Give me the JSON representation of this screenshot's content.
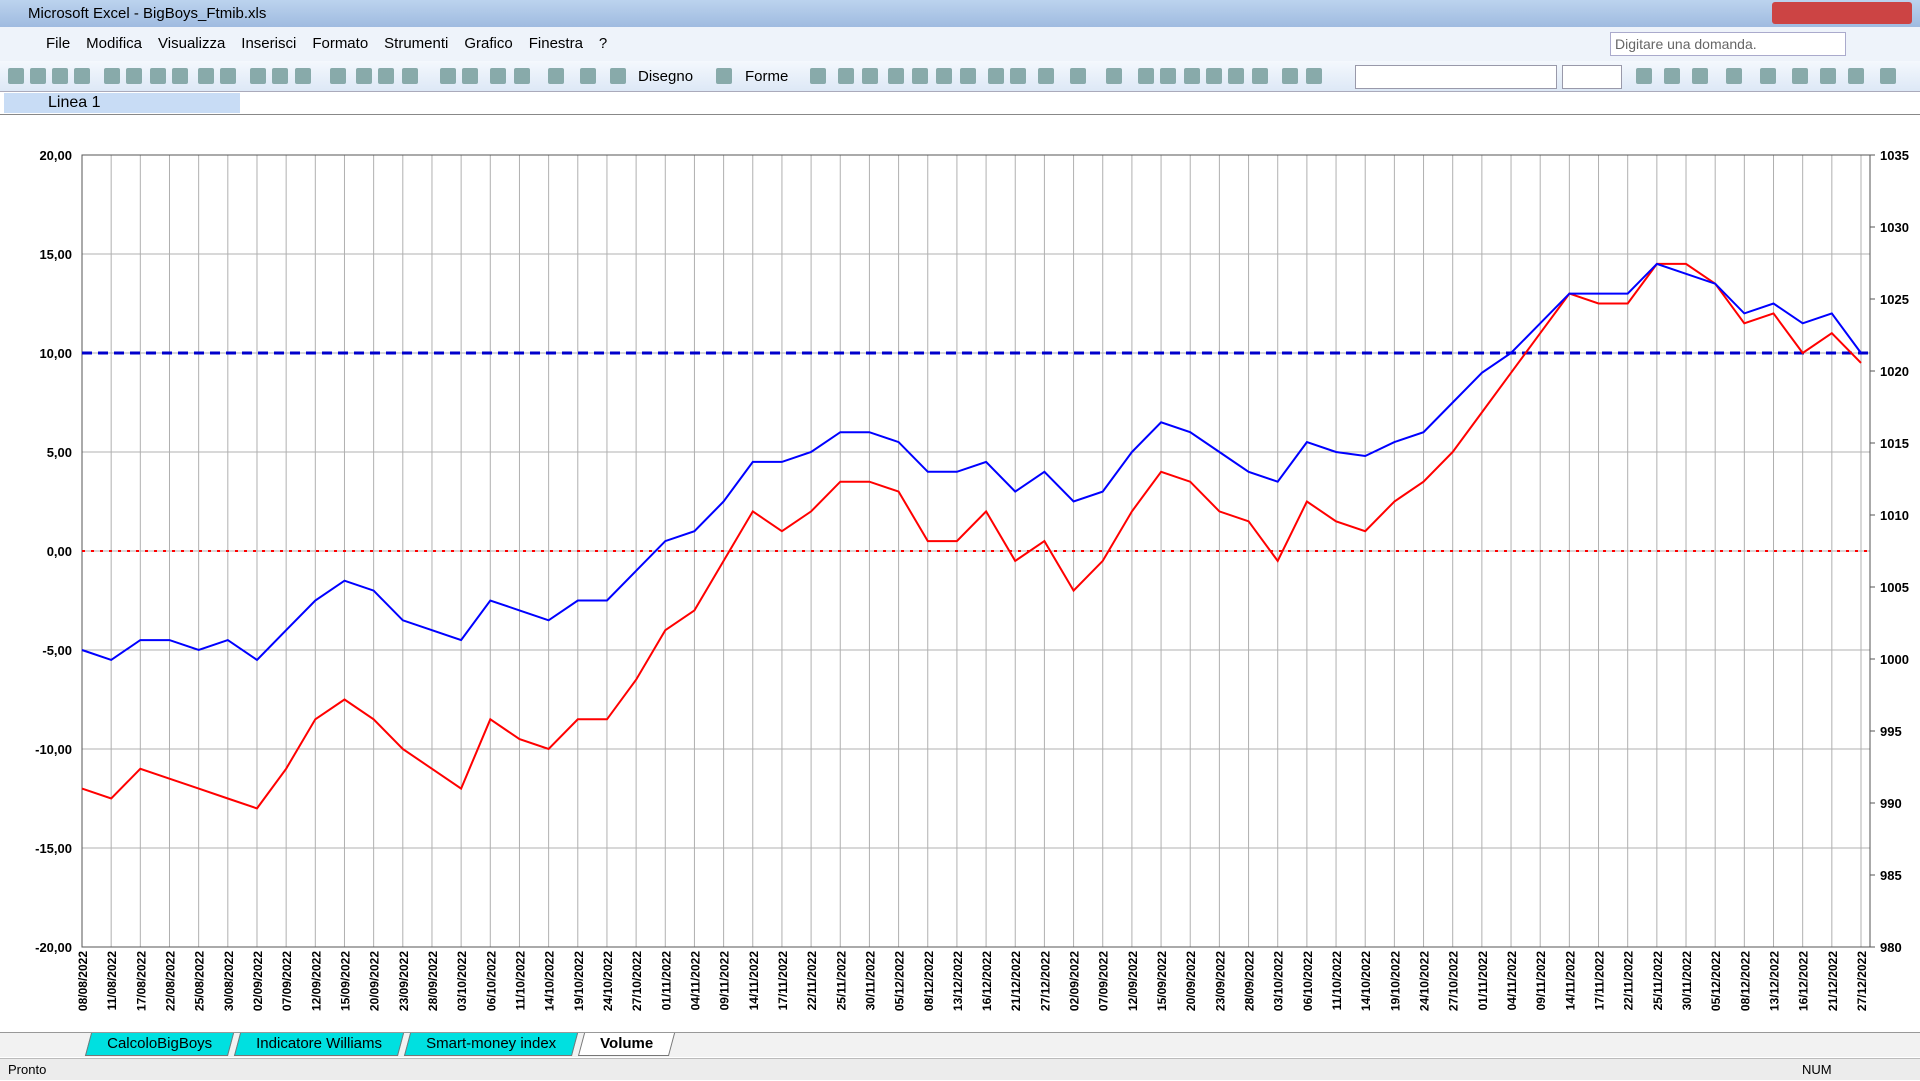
{
  "window": {
    "title": "Microsoft Excel - BigBoys_Ftmib.xls"
  },
  "menu": [
    "File",
    "Modifica",
    "Visualizza",
    "Inserisci",
    "Formato",
    "Strumenti",
    "Grafico",
    "Finestra",
    "?"
  ],
  "help_box": "Digitare una domanda.",
  "toolbar": {
    "drawing": "Disegno",
    "shapes": "Forme"
  },
  "name_box": "Linea 1",
  "sheet_tabs": [
    "CalcoloBigBoys",
    "Indicatore Williams",
    "Smart-money index",
    "Volume"
  ],
  "status": {
    "left": "Pronto",
    "num": "NUM"
  },
  "chart_data": {
    "type": "line",
    "categories": [
      "08/08/2022",
      "11/08/2022",
      "17/08/2022",
      "22/08/2022",
      "25/08/2022",
      "30/08/2022",
      "02/09/2022",
      "07/09/2022",
      "12/09/2022",
      "15/09/2022",
      "20/09/2022",
      "23/09/2022",
      "28/09/2022",
      "03/10/2022",
      "06/10/2022",
      "11/10/2022",
      "14/10/2022",
      "19/10/2022",
      "24/10/2022",
      "27/10/2022",
      "01/11/2022",
      "04/11/2022",
      "09/11/2022",
      "14/11/2022",
      "17/11/2022",
      "22/11/2022",
      "25/11/2022",
      "30/11/2022",
      "05/12/2022",
      "08/12/2022",
      "13/12/2022",
      "16/12/2022",
      "21/12/2022",
      "27/12/2022",
      "02/09/2022",
      "07/09/2022",
      "12/09/2022",
      "15/09/2022",
      "20/09/2022",
      "23/09/2022",
      "28/09/2022",
      "03/10/2022",
      "06/10/2022",
      "11/10/2022",
      "14/10/2022",
      "19/10/2022",
      "24/10/2022",
      "27/10/2022",
      "01/11/2022",
      "04/11/2022",
      "09/11/2022",
      "14/11/2022",
      "17/11/2022",
      "22/11/2022",
      "25/11/2022",
      "30/11/2022",
      "05/12/2022",
      "08/12/2022",
      "13/12/2022",
      "16/12/2022",
      "21/12/2022",
      "27/12/2022"
    ],
    "series": [
      {
        "color": "#ff0000",
        "values": [
          -12.0,
          -12.5,
          -11.0,
          -11.5,
          -12.0,
          -12.5,
          -13.0,
          -11.0,
          -8.5,
          -7.5,
          -8.5,
          -10.0,
          -11.0,
          -12.0,
          -8.5,
          -9.5,
          -10.0,
          -8.5,
          -8.5,
          -6.5,
          -4.0,
          -3.0,
          -0.5,
          2.0,
          1.0,
          2.0,
          3.5,
          3.5,
          3.0,
          0.5,
          0.5,
          2.0,
          -0.5,
          0.5,
          -2.0,
          -0.5,
          2.0,
          4.0,
          3.5,
          2.0,
          1.5,
          -0.5,
          2.5,
          1.5,
          1.0,
          2.5,
          3.5,
          5.0,
          7.0,
          9.0,
          11.0,
          13.0,
          12.5,
          12.5,
          14.5,
          14.5,
          13.5,
          11.5,
          12.0,
          10.0,
          11.0,
          9.5
        ]
      },
      {
        "color": "#0000ff",
        "values": [
          -5.0,
          -5.5,
          -4.5,
          -4.5,
          -5.0,
          -4.5,
          -5.5,
          -4.0,
          -2.5,
          -1.5,
          -2.0,
          -3.5,
          -4.0,
          -4.5,
          -2.5,
          -3.0,
          -3.5,
          -2.5,
          -2.5,
          -1.0,
          0.5,
          1.0,
          2.5,
          4.5,
          4.5,
          5.0,
          6.0,
          6.0,
          5.5,
          4.0,
          4.0,
          4.5,
          3.0,
          4.0,
          2.5,
          3.0,
          5.0,
          6.5,
          6.0,
          5.0,
          4.0,
          3.5,
          5.5,
          5.0,
          4.8,
          5.5,
          6.0,
          7.5,
          9.0,
          10.0,
          11.5,
          13.0,
          13.0,
          13.0,
          14.5,
          14.0,
          13.5,
          12.0,
          12.5,
          11.5,
          12.0,
          10.0
        ]
      }
    ],
    "reference_lines": [
      {
        "value": 0,
        "color": "#ff0000",
        "style": "dotted"
      },
      {
        "value": 10,
        "color": "#0000cc",
        "style": "dashed"
      }
    ],
    "ylim": [
      -20,
      20
    ],
    "yticks": [
      {
        "value": -20,
        "label": "-20,00"
      },
      {
        "value": -15,
        "label": "-15,00"
      },
      {
        "value": -10,
        "label": "-10,00"
      },
      {
        "value": -5,
        "label": "-5,00"
      },
      {
        "value": 0,
        "label": "0,00"
      },
      {
        "value": 5,
        "label": "5,00"
      },
      {
        "value": 10,
        "label": "10,00"
      },
      {
        "value": 15,
        "label": "15,00"
      },
      {
        "value": 20,
        "label": "20,00"
      }
    ],
    "y2lim": [
      980,
      1035
    ],
    "y2ticks": [
      980,
      985,
      990,
      995,
      1000,
      1005,
      1010,
      1015,
      1020,
      1025,
      1030,
      1035
    ],
    "grid": true
  }
}
